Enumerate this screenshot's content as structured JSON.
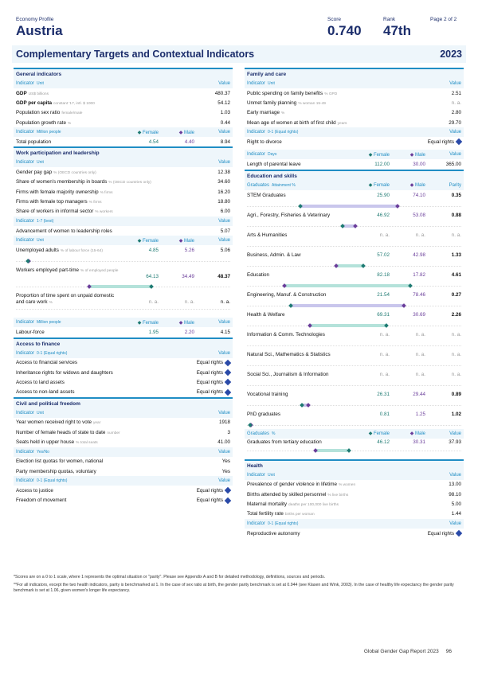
{
  "header": {
    "profile_label": "Economy Profile",
    "country": "Austria",
    "score_label": "Score",
    "score": "0.740",
    "rank_label": "Rank",
    "rank": "47th",
    "page": "Page 2 of 2"
  },
  "band": {
    "title": "Complementary Targets and Contextual Indicators",
    "year": "2023"
  },
  "labels": {
    "indicator": "Indicator",
    "value": "Value",
    "female": "Female",
    "male": "Male",
    "parity": "Parity",
    "graduates": "Graduates",
    "equal_rights": "Equal rights",
    "na": "n. a."
  },
  "general": {
    "title": "General indicators",
    "unit": "Unit",
    "rows": [
      {
        "label": "GDP",
        "unit": "US$ billions",
        "value": "480.37"
      },
      {
        "label": "GDP per capita",
        "unit": "constant '17, intl. $ 1000",
        "value": "54.12"
      },
      {
        "label": "Population sex ratio",
        "unit": "female/male",
        "value": "1.03"
      },
      {
        "label": "Population growth rate",
        "unit": "%",
        "value": "0.44"
      }
    ],
    "pop_unit": "Million people",
    "pop": {
      "label": "Total population",
      "female": "4.54",
      "male": "4.40",
      "value": "8.94"
    }
  },
  "work": {
    "title": "Work participation and leadership",
    "unit": "Unit",
    "rows": [
      {
        "label": "Gender pay gap",
        "unit": "% (OECD countries only)",
        "value": "12.38"
      },
      {
        "label": "Share of women's membership in boards",
        "unit": "% (OECD countries only)",
        "value": "34.60"
      },
      {
        "label": "Firms with female majority ownership",
        "unit": "% firms",
        "value": "16.20"
      },
      {
        "label": "Firms with female top managers",
        "unit": "% firms",
        "value": "18.80"
      },
      {
        "label": "Share of workers in informal sector",
        "unit": "% workers",
        "value": "6.00"
      }
    ],
    "scale_unit": "1-7 (best)",
    "adv": {
      "label": "Advancement of women to leadership roles",
      "value": "5.07"
    },
    "gender_unit": "Unit",
    "gender_rows": [
      {
        "label": "Unemployed adults",
        "unit": "% of labour force (15-64)",
        "female": "4.85",
        "male": "5.26",
        "value": "5.06"
      },
      {
        "label": "Workers employed part-time",
        "unit": "% of employed people",
        "female": "64.13",
        "male": "34.49",
        "value": "48.37"
      },
      {
        "label": "Proportion of time spent on unpaid domestic and care work",
        "unit": "%",
        "female": "n. a.",
        "male": "n. a.",
        "value": "n. a."
      }
    ],
    "lf_unit": "Million people",
    "lf": {
      "label": "Labour-force",
      "female": "1.95",
      "male": "2.20",
      "value": "4.15"
    }
  },
  "finance": {
    "title": "Access to finance",
    "unit": "0-1 (Equal rights)",
    "rows": [
      {
        "label": "Access to financial services",
        "value": "Equal rights"
      },
      {
        "label": "Inheritance rights for widows and daughters",
        "value": "Equal rights"
      },
      {
        "label": "Access to land assets",
        "value": "Equal rights"
      },
      {
        "label": "Access to non-land assets",
        "value": "Equal rights"
      }
    ]
  },
  "civil": {
    "title": "Civil and political freedom",
    "unit": "Unit",
    "rows": [
      {
        "label": "Year women received right to vote",
        "unit": "year",
        "value": "1918"
      },
      {
        "label": "Number of female heads of state to date",
        "unit": "number",
        "value": "3"
      },
      {
        "label": "Seats held in upper house",
        "unit": "% total seats",
        "value": "41.00"
      }
    ],
    "yn_unit": "Yes/No",
    "yn_rows": [
      {
        "label": "Election list quotas for women, national",
        "value": "Yes"
      },
      {
        "label": "Party membership quotas, voluntary",
        "value": "Yes"
      }
    ],
    "eq_unit": "0-1 (Equal rights)",
    "eq_rows": [
      {
        "label": "Access to justice",
        "value": "Equal rights"
      },
      {
        "label": "Freedom of movement",
        "value": "Equal rights"
      }
    ]
  },
  "family": {
    "title": "Family and care",
    "unit": "Unit",
    "rows": [
      {
        "label": "Public spending on family benefits",
        "unit": "% GPD",
        "value": "2.51"
      },
      {
        "label": "Unmet family planning",
        "unit": "% woman 15-49",
        "value": "n. a."
      },
      {
        "label": "Early marriage",
        "unit": "%",
        "value": "2.80"
      },
      {
        "label": "Mean age of women at birth of first child",
        "unit": "years",
        "value": "29.70"
      }
    ],
    "eq_unit": "0-1 (Equal rights)",
    "divorce": {
      "label": "Right to divorce",
      "value": "Equal rights"
    },
    "days_unit": "Days",
    "leave": {
      "label": "Length of parental leave",
      "female": "112.00",
      "male": "30.00",
      "value": "365.00"
    }
  },
  "education": {
    "title": "Education and skills",
    "unit": "Attainment %",
    "rows": [
      {
        "label": "STEM Graduates",
        "female": "25.90",
        "male": "74.10",
        "value": "0.35",
        "fpos": 0.32,
        "mpos": 0.92
      },
      {
        "label": "Agri., Forestry, Fisheries & Veterinary",
        "female": "46.92",
        "male": "53.08",
        "value": "0.88",
        "fpos": 0.58,
        "mpos": 0.66
      },
      {
        "label": "Arts & Humanities",
        "female": "n. a.",
        "male": "n. a.",
        "value": "n. a."
      },
      {
        "label": "Business, Admin. & Law",
        "female": "57.02",
        "male": "42.98",
        "value": "1.33",
        "fpos": 0.71,
        "mpos": 0.54
      },
      {
        "label": "Education",
        "female": "82.18",
        "male": "17.82",
        "value": "4.61",
        "fpos": 1.0,
        "mpos": 0.22
      },
      {
        "label": "Engineering, Manuf. & Construction",
        "female": "21.54",
        "male": "78.46",
        "value": "0.27",
        "fpos": 0.26,
        "mpos": 0.96
      },
      {
        "label": "Health & Welfare",
        "female": "69.31",
        "male": "30.69",
        "value": "2.26",
        "fpos": 0.85,
        "mpos": 0.38
      },
      {
        "label": "Information & Comm. Technologies",
        "female": "n. a.",
        "male": "n. a.",
        "value": "n. a."
      },
      {
        "label": "Natural Sci., Mathematics & Statistics",
        "female": "n. a.",
        "male": "n. a.",
        "value": "n. a."
      },
      {
        "label": "Social Sci., Journalism & Information",
        "female": "n. a.",
        "male": "n. a.",
        "value": "n. a."
      },
      {
        "label": "Vocational training",
        "female": "26.31",
        "male": "29.44",
        "value": "0.89",
        "fpos": 0.33,
        "mpos": 0.37
      },
      {
        "label": "PhD graduates",
        "female": "0.81",
        "male": "1.25",
        "value": "1.02",
        "fpos": 0.01,
        "mpos": 0.015
      }
    ],
    "tert_unit": "%",
    "tertiary": {
      "label": "Graduates from tertiary education",
      "female": "46.12",
      "male": "30.31",
      "value": "37.93",
      "fpos": 0.57,
      "mpos": 0.37
    }
  },
  "health": {
    "title": "Health",
    "unit": "Unit",
    "rows": [
      {
        "label": "Prevalence of gender violence in lifetime",
        "unit": "% women",
        "value": "13.00"
      },
      {
        "label": "Births attended by skilled personnel",
        "unit": "% live births",
        "value": "98.10"
      },
      {
        "label": "Maternal mortality",
        "unit": "deaths per 100,000 live births",
        "value": "5.00"
      },
      {
        "label": "Total fertility rate",
        "unit": "births per woman",
        "value": "1.44"
      }
    ],
    "eq_unit": "0-1 (Equal rights)",
    "repro": {
      "label": "Reproductive autonomy",
      "value": "Equal rights"
    }
  },
  "footnotes": [
    "*Scores are on a 0 to 1 scale, where 1 represents the optimal situation or \"parity\". Please see Appendix A and B for detailed methodology, definitions, sources and periods.",
    "**For all indicators, except the two health indicators, parity is benchmarked at 1. In the case of sex ratio at birth, the gender parity benchmark is set at 0.944 (see Klasen and Wink, 2003). In the case of healthy life expectancy the gender parity benchmark is set at 1.06, given women's longer life expectancy."
  ],
  "footer": {
    "report": "Global Gender Gap Report 2023",
    "page_number": "96"
  }
}
